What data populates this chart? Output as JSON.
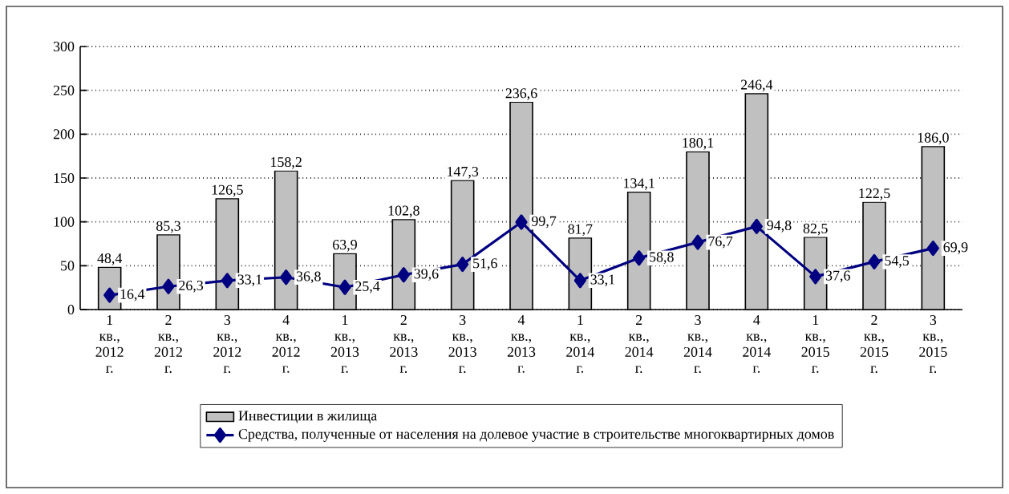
{
  "chart_data": {
    "type": "bar",
    "categories": [
      "1 кв., 2012 г.",
      "2 кв., 2012 г.",
      "3 кв., 2012 г.",
      "4 кв., 2012 г.",
      "1 кв., 2013 г.",
      "2 кв., 2013 г.",
      "3 кв., 2013 г.",
      "4 кв., 2013 г.",
      "1 кв., 2014 г.",
      "2 кв., 2014 г.",
      "3 кв., 2014 г.",
      "4 кв., 2014 г.",
      "1 кв., 2015 г.",
      "2 кв., 2015 г.",
      "3 кв., 2015 г."
    ],
    "series": [
      {
        "name": "Инвестиции в жилища",
        "color": "#c0c0c0",
        "values": [
          48.4,
          85.3,
          126.5,
          158.2,
          63.9,
          102.8,
          147.3,
          236.6,
          81.7,
          134.1,
          180.1,
          246.4,
          82.5,
          122.5,
          186.0
        ],
        "value_labels": [
          "48,4",
          "85,3",
          "126,5",
          "158,2",
          "63,9",
          "102,8",
          "147,3",
          "236,6",
          "81,7",
          "134,1",
          "180,1",
          "246,4",
          "82,5",
          "122,5",
          "186,0"
        ]
      },
      {
        "name": "Средства, полученные от населения на долевое участие в строительстве многоквартирных домов",
        "type": "line",
        "color": "#000080",
        "marker": "diamond",
        "values": [
          16.4,
          26.3,
          33.1,
          36.8,
          25.4,
          39.6,
          51.6,
          99.7,
          33.1,
          58.8,
          76.7,
          94.8,
          37.6,
          54.5,
          69.9
        ],
        "value_labels": [
          "16,4",
          "26,3",
          "33,1",
          "36,8",
          "25,4",
          "39,6",
          "51,6",
          "99,7",
          "33,1",
          "58,8",
          "76,7",
          "94,8",
          "37,6",
          "54,5",
          "69,9"
        ]
      }
    ],
    "ylim": [
      0,
      300
    ],
    "yticks": [
      0,
      50,
      100,
      150,
      200,
      250,
      300
    ],
    "grid": "y",
    "legend": "bottom"
  }
}
